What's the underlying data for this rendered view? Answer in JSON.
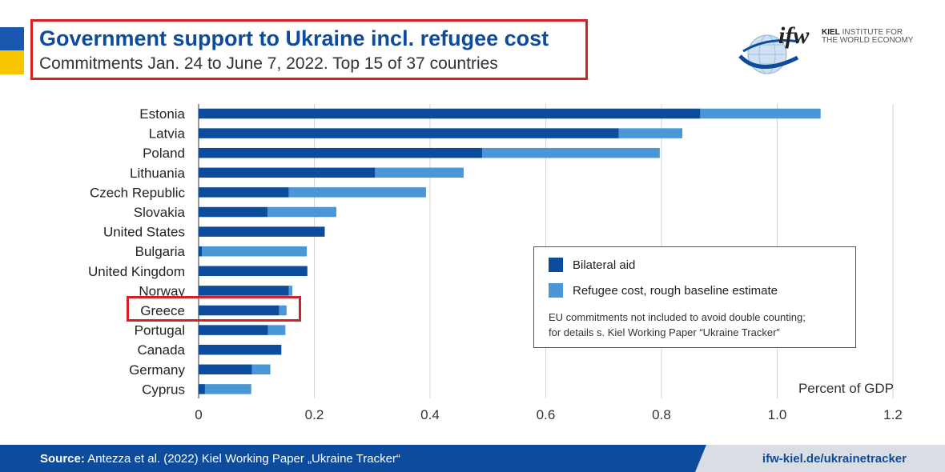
{
  "header": {
    "title": "Government support to Ukraine incl. refugee cost",
    "subtitle": "Commitments Jan. 24 to June 7, 2022. Top 15 of 37 countries"
  },
  "logo": {
    "mark": "ifw",
    "line1_bold": "KIEL",
    "line1_rest": "INSTITUTE FOR",
    "line2": "THE WORLD ECONOMY"
  },
  "chart_data": {
    "type": "bar",
    "orientation": "horizontal",
    "stacked": true,
    "categories": [
      "Estonia",
      "Latvia",
      "Poland",
      "Lithuania",
      "Czech Republic",
      "Slovakia",
      "United States",
      "Bulgaria",
      "United Kingdom",
      "Norway",
      "Greece",
      "Portugal",
      "Canada",
      "Germany",
      "Cyprus"
    ],
    "series": [
      {
        "name": "Bilateral aid",
        "color": "#0d4c9c",
        "values": [
          0.867,
          0.726,
          0.49,
          0.305,
          0.156,
          0.119,
          0.218,
          0.006,
          0.188,
          0.156,
          0.139,
          0.12,
          0.143,
          0.092,
          0.011
        ]
      },
      {
        "name": "Refugee cost, rough baseline estimate",
        "color": "#4a97d8",
        "values": [
          0.208,
          0.11,
          0.307,
          0.153,
          0.237,
          0.119,
          0.0,
          0.181,
          0.0,
          0.006,
          0.013,
          0.03,
          0.0,
          0.032,
          0.08
        ]
      }
    ],
    "xlabel": "Percent of GDP",
    "xlim": [
      0,
      1.2
    ],
    "xticks": [
      0,
      0.2,
      0.4,
      0.6,
      0.8,
      1.0,
      1.2
    ],
    "xtick_labels": [
      "0",
      "0.2",
      "0.4",
      "0.6",
      "0.8",
      "1.0",
      "1.2"
    ],
    "grid": "vertical",
    "highlighted_category": "Greece"
  },
  "legend": {
    "items": [
      {
        "label": "Bilateral aid",
        "color": "#0d4c9c"
      },
      {
        "label": "Refugee cost, rough baseline estimate",
        "color": "#4a97d8"
      }
    ],
    "note_line1": "EU commitments not included to avoid double counting;",
    "note_line2": "for details s. Kiel Working Paper “Ukraine Tracker”"
  },
  "footer": {
    "source_label": "Source:",
    "source_text": "Antezza et al. (2022) Kiel Working Paper „Ukraine Tracker“",
    "url": "ifw-kiel.de/ukrainetracker"
  },
  "colors": {
    "brand_blue": "#0d4c9c",
    "light_blue": "#4a97d8",
    "highlight_red": "#d62027",
    "flag_blue": "#1a57b0",
    "flag_yellow": "#f7c600"
  }
}
